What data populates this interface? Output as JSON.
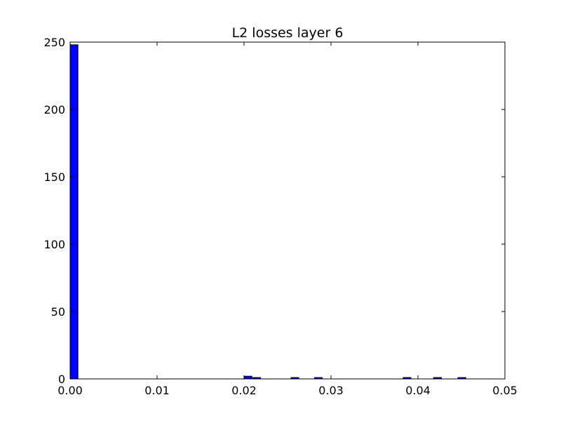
{
  "chart_data": {
    "type": "bar",
    "title": "L2 losses layer 6",
    "xlabel": "",
    "ylabel": "",
    "xlim": [
      0.0,
      0.05
    ],
    "ylim": [
      0,
      250
    ],
    "x_ticks": [
      "0.00",
      "0.01",
      "0.02",
      "0.03",
      "0.04",
      "0.05"
    ],
    "y_ticks": [
      "0",
      "50",
      "100",
      "150",
      "200",
      "250"
    ],
    "grid": false,
    "bin_width": 0.0009,
    "bars": [
      {
        "x": 0.0,
        "count": 248
      },
      {
        "x": 0.02,
        "count": 2
      },
      {
        "x": 0.021,
        "count": 1
      },
      {
        "x": 0.0254,
        "count": 1
      },
      {
        "x": 0.0281,
        "count": 1
      },
      {
        "x": 0.0383,
        "count": 1
      },
      {
        "x": 0.0418,
        "count": 1
      },
      {
        "x": 0.0446,
        "count": 1
      }
    ],
    "colors": {
      "bar_fill": "#0000ff",
      "bar_edge": "#000000",
      "axes": "#000000"
    }
  }
}
